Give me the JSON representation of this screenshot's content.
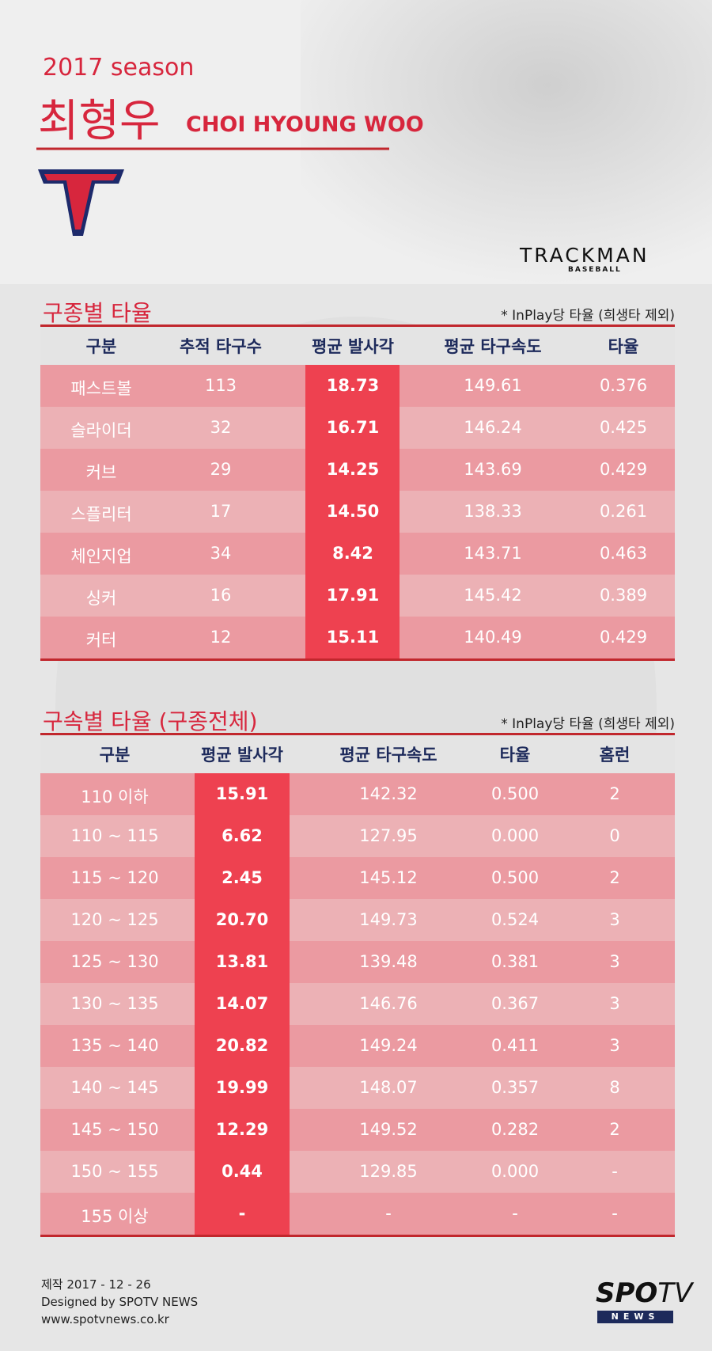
{
  "header": {
    "season": "2017 season",
    "name_ko": "최형우",
    "name_en": "CHOI HYOUNG WOO",
    "trackman": "TRACKMAN",
    "trackman_sub": "BASEBALL"
  },
  "table1": {
    "title": "구종별 타율",
    "note": "* InPlay당 타율 (희생타 제외)",
    "columns": [
      "구분",
      "추적 타구수",
      "평균 발사각",
      "평균 타구속도",
      "타율"
    ],
    "rows": [
      [
        "패스트볼",
        "113",
        "18.73",
        "149.61",
        "0.376"
      ],
      [
        "슬라이더",
        "32",
        "16.71",
        "146.24",
        "0.425"
      ],
      [
        "커브",
        "29",
        "14.25",
        "143.69",
        "0.429"
      ],
      [
        "스플리터",
        "17",
        "14.50",
        "138.33",
        "0.261"
      ],
      [
        "체인지업",
        "34",
        "8.42",
        "143.71",
        "0.463"
      ],
      [
        "싱커",
        "16",
        "17.91",
        "145.42",
        "0.389"
      ],
      [
        "커터",
        "12",
        "15.11",
        "140.49",
        "0.429"
      ]
    ]
  },
  "table2": {
    "title": "구속별 타율 (구종전체)",
    "note": "* InPlay당 타율 (희생타 제외)",
    "columns": [
      "구분",
      "평균 발사각",
      "평균 타구속도",
      "타율",
      "홈런"
    ],
    "rows": [
      [
        "110 이하",
        "15.91",
        "142.32",
        "0.500",
        "2"
      ],
      [
        "110 ~ 115",
        "6.62",
        "127.95",
        "0.000",
        "0"
      ],
      [
        "115 ~ 120",
        "2.45",
        "145.12",
        "0.500",
        "2"
      ],
      [
        "120 ~ 125",
        "20.70",
        "149.73",
        "0.524",
        "3"
      ],
      [
        "125 ~ 130",
        "13.81",
        "139.48",
        "0.381",
        "3"
      ],
      [
        "130 ~ 135",
        "14.07",
        "146.76",
        "0.367",
        "3"
      ],
      [
        "135 ~ 140",
        "20.82",
        "149.24",
        "0.411",
        "3"
      ],
      [
        "140 ~ 145",
        "19.99",
        "148.07",
        "0.357",
        "8"
      ],
      [
        "145 ~ 150",
        "12.29",
        "149.52",
        "0.282",
        "2"
      ],
      [
        "150 ~ 155",
        "0.44",
        "129.85",
        "0.000",
        "-"
      ],
      [
        "155 이상",
        "-",
        "-",
        "-",
        "-"
      ]
    ]
  },
  "footer": {
    "lines": [
      "제작 2017 - 12 - 26",
      "Designed by SPOTV NEWS",
      "www.spotvnews.co.kr"
    ],
    "brand": "SPO",
    "brand_tv": "TV",
    "brand_sub": "NEWS"
  }
}
